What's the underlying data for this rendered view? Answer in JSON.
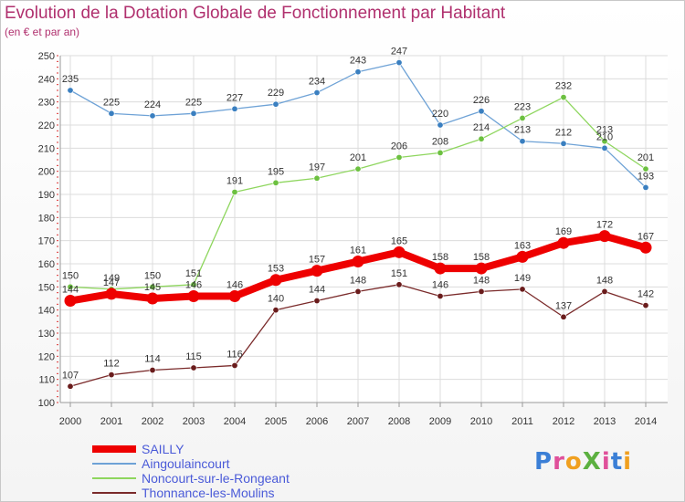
{
  "title": "Evolution de la Dotation Globale de Fonctionnement par Habitant",
  "subtitle": "(en € et par an)",
  "logo": {
    "text": "ProXiti",
    "letters": [
      {
        "ch": "P",
        "color": "#3b7fd6"
      },
      {
        "ch": "r",
        "color": "#e0509a"
      },
      {
        "ch": "o",
        "color": "#f0a020"
      },
      {
        "ch": "X",
        "color": "#5cb040"
      },
      {
        "ch": "i",
        "color": "#e0509a"
      },
      {
        "ch": "t",
        "color": "#3b7fd6"
      },
      {
        "ch": "i",
        "color": "#f0a020"
      }
    ]
  },
  "chart_data": {
    "type": "line",
    "title": "Evolution de la Dotation Globale de Fonctionnement par Habitant",
    "ylabel": "(en € et par an)",
    "x": [
      "2000",
      "2001",
      "2002",
      "2003",
      "2004",
      "2005",
      "2006",
      "2007",
      "2008",
      "2009",
      "2010",
      "2011",
      "2012",
      "2013",
      "2014"
    ],
    "ylim": [
      100,
      250
    ],
    "yticks": [
      100,
      110,
      120,
      130,
      140,
      150,
      160,
      170,
      180,
      190,
      200,
      210,
      220,
      230,
      240,
      250
    ],
    "grid": true,
    "series": [
      {
        "name": "Aingoulaincourt",
        "color": "#6ea2d6",
        "marker": "#3a7fc0",
        "values": [
          235,
          225,
          224,
          225,
          227,
          229,
          234,
          243,
          247,
          220,
          226,
          213,
          212,
          210,
          193
        ]
      },
      {
        "name": "Noncourt-sur-le-Rongeant",
        "color": "#8ed65e",
        "marker": "#6cc040",
        "values": [
          150,
          149,
          150,
          151,
          191,
          195,
          197,
          201,
          206,
          208,
          214,
          223,
          232,
          213,
          201
        ]
      },
      {
        "name": "Thonnance-les-Moulins",
        "color": "#7a2a2a",
        "marker": "#6a1c1c",
        "values": [
          107,
          112,
          114,
          115,
          116,
          140,
          144,
          148,
          151,
          146,
          148,
          149,
          137,
          148,
          142
        ]
      },
      {
        "name": "SAILLY",
        "color": "#ee0000",
        "marker": "#ee0000",
        "bold": true,
        "values": [
          144,
          147,
          145,
          146,
          146,
          153,
          157,
          161,
          165,
          158,
          158,
          163,
          169,
          172,
          167
        ]
      }
    ],
    "legend_order": [
      "SAILLY",
      "Aingoulaincourt",
      "Noncourt-sur-le-Rongeant",
      "Thonnance-les-Moulins"
    ]
  }
}
